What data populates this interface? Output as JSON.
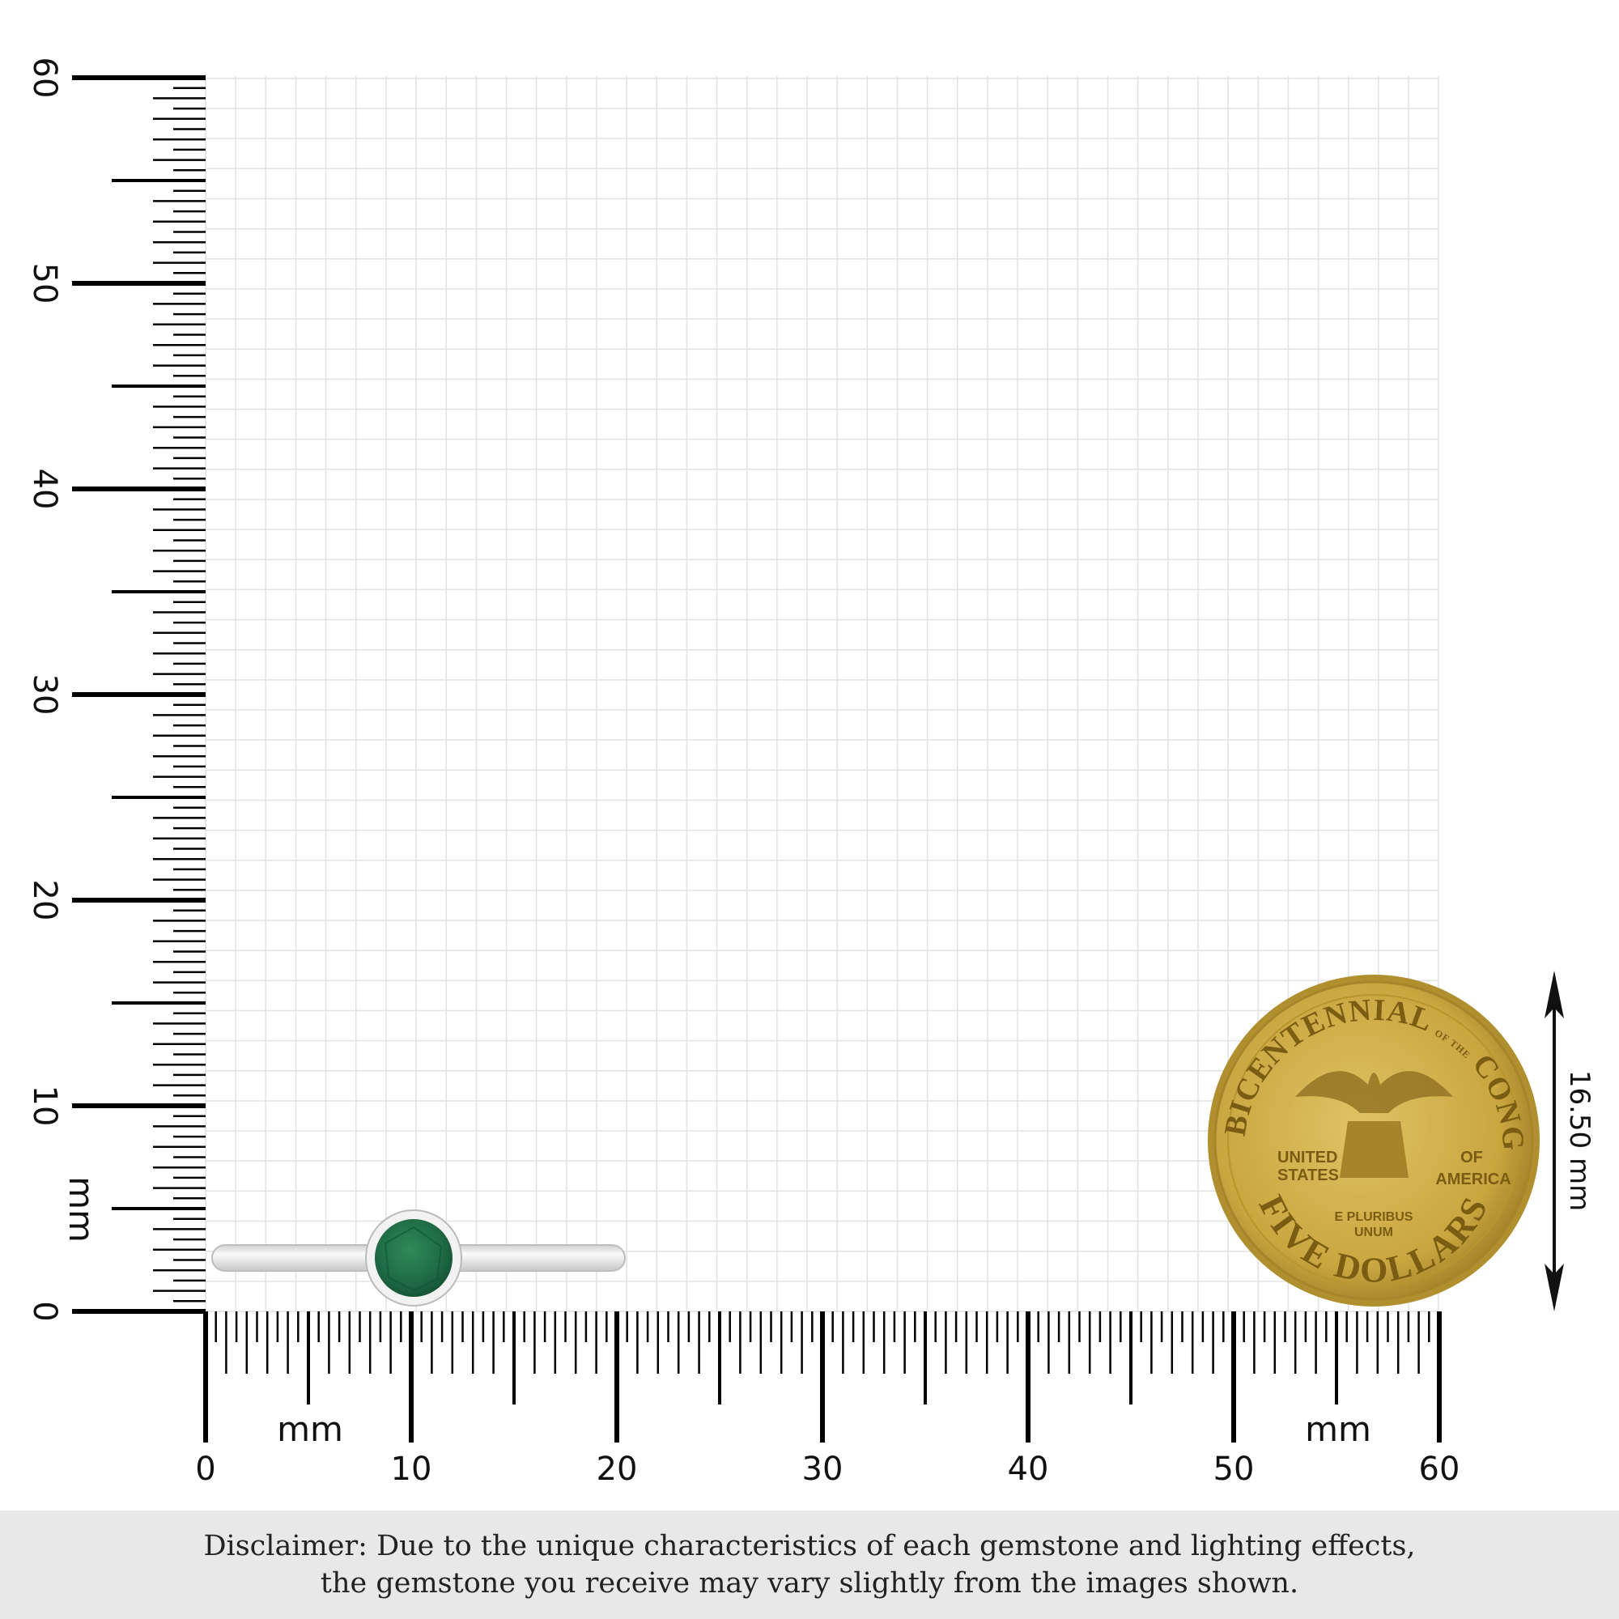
{
  "ruler": {
    "unit_label": "mm",
    "x_ticks": [
      "0",
      "10",
      "20",
      "30",
      "40",
      "50",
      "60"
    ],
    "y_ticks": [
      "0",
      "10",
      "20",
      "30",
      "40",
      "50",
      "60"
    ],
    "range_mm": [
      0,
      60
    ]
  },
  "coin": {
    "top_text": "BICENTENNIAL",
    "of_the": "OF THE",
    "congress": "CONGRESS",
    "left_text": [
      "UNITED",
      "STATES"
    ],
    "right_text": [
      "OF",
      "AMERICA"
    ],
    "motto": [
      "E PLURIBUS",
      "UNUM"
    ],
    "denomination": "FIVE DOLLARS",
    "color": "#c9a640"
  },
  "dimension": {
    "label": "16.50 mm"
  },
  "ring": {
    "stone_color": "#1f6b45",
    "metal_color": "#e4e4e4"
  },
  "disclaimer": {
    "line1": "Disclaimer: Due to the unique characteristics of each gemstone and lighting effects,",
    "line2": "the gemstone you receive may vary slightly from the images shown."
  }
}
